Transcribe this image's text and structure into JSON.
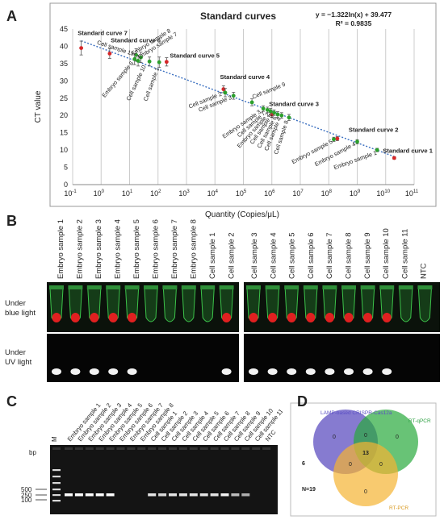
{
  "panel_labels": {
    "a": "A",
    "b": "B",
    "c": "C",
    "d": "D"
  },
  "chart_data": {
    "type": "scatter",
    "title": "Standard curves",
    "equation": "y = −1.322ln(x) + 39.477",
    "r2": "R² = 0.9835",
    "xlabel": "Quantity (Copies/μL)",
    "ylabel": "CT value",
    "x_scale": "log",
    "xlim": [
      0.1,
      100000000000
    ],
    "ylim": [
      0,
      45
    ],
    "xticks": [
      {
        "v": 0.1,
        "base": "10",
        "exp": "-1"
      },
      {
        "v": 1,
        "base": "10",
        "exp": "0"
      },
      {
        "v": 10,
        "base": "10",
        "exp": "1"
      },
      {
        "v": 100,
        "base": "10",
        "exp": "2"
      },
      {
        "v": 1000,
        "base": "10",
        "exp": "3"
      },
      {
        "v": 10000,
        "base": "10",
        "exp": "4"
      },
      {
        "v": 100000,
        "base": "10",
        "exp": "5"
      },
      {
        "v": 1000000,
        "base": "10",
        "exp": "6"
      },
      {
        "v": 10000000,
        "base": "10",
        "exp": "7"
      },
      {
        "v": 100000000,
        "base": "10",
        "exp": "8"
      },
      {
        "v": 1000000000,
        "base": "10",
        "exp": "9"
      },
      {
        "v": 10000000000,
        "base": "10",
        "exp": "10"
      },
      {
        "v": 100000000000,
        "base": "10",
        "exp": "11"
      }
    ],
    "yticks": [
      0,
      5,
      10,
      15,
      20,
      25,
      30,
      35,
      40,
      45
    ],
    "grid": "vertical",
    "trendline": {
      "a": -1.322,
      "b": 39.477,
      "x_from": 0.2,
      "x_to": 20000000000
    },
    "series": [
      {
        "name": "Standard curves",
        "color": "#d62728",
        "points": [
          {
            "label": "Standard curve 7",
            "x": 0.2,
            "y": 39.5,
            "err": 2.0
          },
          {
            "label": "Standard curve 6",
            "x": 2,
            "y": 37.9,
            "err": 1.4
          },
          {
            "label": "Standard curve 5",
            "x": 200,
            "y": 35.5,
            "err": 1.2
          },
          {
            "label": "Standard curve 4",
            "x": 20000,
            "y": 27.6,
            "err": 1.0
          },
          {
            "label": "Standard curve 3",
            "x": 1000000,
            "y": 20.3,
            "err": 0.8
          },
          {
            "label": "Standard curve 2",
            "x": 200000000,
            "y": 13.3,
            "err": 0.6
          },
          {
            "label": "Standard curve 1",
            "x": 20000000000,
            "y": 7.7,
            "err": 0.4
          }
        ]
      },
      {
        "name": "Samples",
        "color": "#2ca02c",
        "points": [
          {
            "label": "Embryo sample 8",
            "x": 17,
            "y": 37.5,
            "err": 1.8
          },
          {
            "label": "Embryo sample 7",
            "x": 25,
            "y": 36.8,
            "err": 1.5
          },
          {
            "label": "Cell sample 11",
            "x": 15,
            "y": 36.3,
            "err": 1.6
          },
          {
            "label": "Embryo sample 6",
            "x": 20,
            "y": 35.8,
            "err": 1.5
          },
          {
            "label": "Cell sample 10",
            "x": 50,
            "y": 35.6,
            "err": 1.3
          },
          {
            "label": "Cell sample 1",
            "x": 110,
            "y": 35.4,
            "err": 1.5
          },
          {
            "label": "Cell sample 2",
            "x": 23000,
            "y": 26.6,
            "err": 1.2
          },
          {
            "label": "Cell sample 3",
            "x": 45000,
            "y": 25.7,
            "err": 1.0
          },
          {
            "label": "Cell sample 9",
            "x": 200000,
            "y": 23.8,
            "err": 1.0
          },
          {
            "label": "Embryo sample 3",
            "x": 500000,
            "y": 22.0,
            "err": 0.8
          },
          {
            "label": "Cell sample 7",
            "x": 700000,
            "y": 21.6,
            "err": 0.8
          },
          {
            "label": "Embryo sample 2",
            "x": 900000,
            "y": 21.2,
            "err": 0.8
          },
          {
            "label": "Cell sample 5",
            "x": 1200000,
            "y": 20.8,
            "err": 0.8
          },
          {
            "label": "Cell sample 6",
            "x": 1600000,
            "y": 20.3,
            "err": 0.8
          },
          {
            "label": "Cell sample 4",
            "x": 2200000,
            "y": 20.0,
            "err": 0.8
          },
          {
            "label": "Cell sample 8",
            "x": 4000000,
            "y": 19.4,
            "err": 0.9
          },
          {
            "label": "Embryo sample 5",
            "x": 150000000,
            "y": 13.1,
            "err": 0.6
          },
          {
            "label": "Embryo sample 4",
            "x": 1000000000,
            "y": 12.4,
            "err": 0.6
          },
          {
            "label": "Embryo sample 1",
            "x": 5000000000,
            "y": 10.0,
            "err": 0.5
          }
        ]
      }
    ],
    "annotations": [
      {
        "text": "Standard curve 7",
        "x": 0.15,
        "y": 43.2,
        "bold": true,
        "rot": 0
      },
      {
        "text": "Standard curve 6",
        "x": 2.2,
        "y": 41.2,
        "bold": true,
        "rot": 0
      },
      {
        "text": "Standard curve 5",
        "x": 260,
        "y": 36.7,
        "bold": true,
        "rot": 0
      },
      {
        "text": "Standard curve 4",
        "x": 15000,
        "y": 30.6,
        "bold": true,
        "rot": 0
      },
      {
        "text": "Standard curve 3",
        "x": 800000,
        "y": 22.7,
        "bold": true,
        "rot": 0
      },
      {
        "text": "Standard curve 2",
        "x": 500000000,
        "y": 15.3,
        "bold": true,
        "rot": 0
      },
      {
        "text": "Standard curve 1",
        "x": 8000000000,
        "y": 9.2,
        "bold": true,
        "rot": 0
      },
      {
        "text": "Embryo sample 8",
        "x": 13,
        "y": 37.3,
        "bold": false,
        "rot": -32
      },
      {
        "text": "Embryo sample 7",
        "x": 22,
        "y": 36.3,
        "bold": false,
        "rot": -32
      },
      {
        "text": "Cell sample 11",
        "x": 13,
        "y": 37.3,
        "bold": false,
        "rot": 18,
        "anchor": "end"
      },
      {
        "text": "Embryo sample 6",
        "x": 14,
        "y": 35.1,
        "bold": false,
        "rot": -50,
        "anchor": "end"
      },
      {
        "text": "Cell sample 10",
        "x": 38,
        "y": 34.2,
        "bold": false,
        "rot": -65,
        "anchor": "end"
      },
      {
        "text": "Cell sample 1",
        "x": 110,
        "y": 33.6,
        "bold": false,
        "rot": -70,
        "anchor": "end"
      },
      {
        "text": "Cell sample 2",
        "x": 18000,
        "y": 25.8,
        "bold": false,
        "rot": -22,
        "anchor": "end"
      },
      {
        "text": "Cell sample 3",
        "x": 40000,
        "y": 24.8,
        "bold": false,
        "rot": -22,
        "anchor": "end"
      },
      {
        "text": "Cell sample 9",
        "x": 220000,
        "y": 24.8,
        "bold": false,
        "rot": -22
      },
      {
        "text": "Embryo sample 3",
        "x": 420000,
        "y": 20.8,
        "bold": false,
        "rot": -35,
        "anchor": "end"
      },
      {
        "text": "Cell sample 7",
        "x": 600000,
        "y": 20.4,
        "bold": false,
        "rot": -42,
        "anchor": "end"
      },
      {
        "text": "Embryo sample 2",
        "x": 850000,
        "y": 20.2,
        "bold": false,
        "rot": -48,
        "anchor": "end"
      },
      {
        "text": "Cell sample 5",
        "x": 1100000,
        "y": 19.9,
        "bold": false,
        "rot": -55,
        "anchor": "end"
      },
      {
        "text": "Cell sample 6",
        "x": 1500000,
        "y": 19.4,
        "bold": false,
        "rot": -62,
        "anchor": "end"
      },
      {
        "text": "Cell sample 4",
        "x": 2100000,
        "y": 19.1,
        "bold": false,
        "rot": -68,
        "anchor": "end"
      },
      {
        "text": "Cell sample 8",
        "x": 3800000,
        "y": 18.3,
        "bold": false,
        "rot": -72,
        "anchor": "end"
      },
      {
        "text": "Embryo sample 5",
        "x": 140000000,
        "y": 12.1,
        "bold": false,
        "rot": -28,
        "anchor": "end"
      },
      {
        "text": "Embryo sample 4",
        "x": 900000000,
        "y": 11.4,
        "bold": false,
        "rot": -28,
        "anchor": "end"
      },
      {
        "text": "Embryo sample 1",
        "x": 5000000000,
        "y": 8.8,
        "bold": false,
        "rot": -20,
        "anchor": "end"
      }
    ]
  },
  "gel_photos": {
    "left_labels": [
      "Embryo sample 1",
      "Embryo sample 2",
      "Embryo sample 3",
      "Embryo sample 4",
      "Embryo sample 5",
      "Embryo sample 6",
      "Embryo sample 7",
      "Embryo sample 8",
      "Cell sample 1",
      "Cell sample 2"
    ],
    "right_labels": [
      "Cell sample 3",
      "Cell sample 4",
      "Cell sample 5",
      "Cell sample 6",
      "Cell sample 7",
      "Cell sample 8",
      "Cell sample 9",
      "Cell sample 10",
      "Cell sample 11",
      "NTC"
    ],
    "row_labels": {
      "blue": [
        "Under",
        "blue light"
      ],
      "uv": [
        "Under",
        "UV light"
      ]
    },
    "left_positive_tubes": [
      1,
      1,
      1,
      1,
      1,
      0,
      0,
      0,
      0,
      1
    ],
    "right_positive_tubes": [
      1,
      1,
      1,
      1,
      1,
      1,
      1,
      1,
      0,
      0
    ]
  },
  "gel": {
    "marker_label": "M",
    "lane_labels": [
      "Embryo sample 1",
      "Embryo sample 2",
      "Embryo sample 3",
      "Embryo sample 4",
      "Embryo sample 5",
      "Embryo sample 6",
      "Embryo sample 7",
      "Embryo sample 8",
      "Cell sample 1",
      "Cell sample 2",
      "Cell sample 3",
      "Cell sample 4",
      "Cell sample 5",
      "Cell sample 6",
      "Cell sample 7",
      "Cell sample 8",
      "Cell sample 9",
      "Cell sample 10",
      "Cell sample 11",
      "NTC"
    ],
    "bp_label": "bp",
    "sizes": [
      "500",
      "250",
      "100"
    ],
    "band_intensity": [
      1,
      1,
      1,
      1,
      1,
      0,
      0,
      0,
      0.8,
      0.7,
      0.8,
      0.8,
      0.8,
      0.8,
      0.8,
      0.9,
      0.5,
      0.4,
      0,
      0
    ]
  },
  "venn": {
    "sets": [
      {
        "label": "LAMP-based CRISPR-Cas12a",
        "color": "#5b4fc4",
        "fill": "rgba(88,72,190,0.72)"
      },
      {
        "label": "RT-qPCR",
        "color": "#2ea043",
        "fill": "rgba(40,170,60,0.70)"
      },
      {
        "label": "RT-PCR",
        "color": "#d99a20",
        "fill": "rgba(245,180,50,0.70)"
      }
    ],
    "values": {
      "a_only": "0",
      "b_only": "0",
      "c_only": "0",
      "ab": "0",
      "ac": "0",
      "bc": "0",
      "abc": "13"
    },
    "outside": "6",
    "n": "N=19"
  },
  "colors": {
    "trend": "#3a6fc0",
    "grid": "#cccccc",
    "plot_border": "#999999"
  }
}
